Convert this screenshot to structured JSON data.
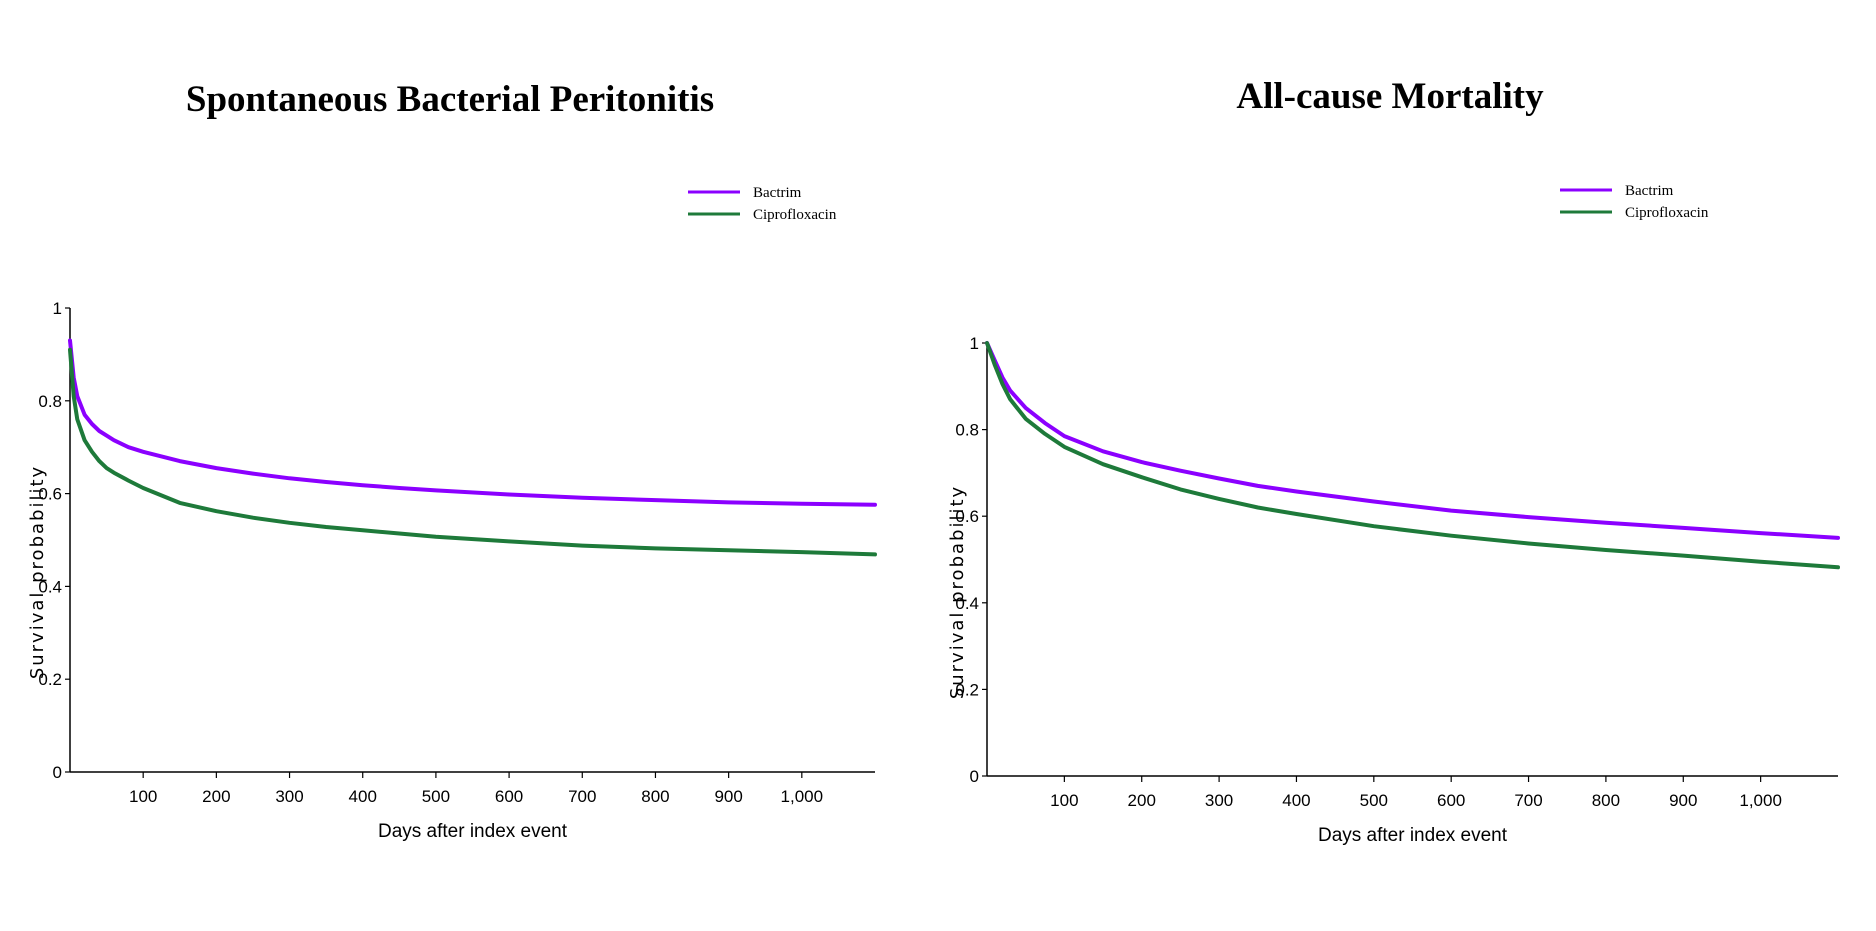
{
  "colors": {
    "bactrim": "#8B00FF",
    "ciprofloxacin": "#1E7A3A"
  },
  "chart_data": [
    {
      "type": "line",
      "title": "Spontaneous Bacterial Peritonitis",
      "xlabel": "Days after index event",
      "ylabel": "Survival probability",
      "xlim": [
        0,
        1100
      ],
      "ylim": [
        0,
        1
      ],
      "xticks": [
        100,
        200,
        300,
        400,
        500,
        600,
        700,
        800,
        900,
        1000
      ],
      "xtick_labels": [
        "100",
        "200",
        "300",
        "400",
        "500",
        "600",
        "700",
        "800",
        "900",
        "1,000"
      ],
      "yticks": [
        0,
        0.2,
        0.4,
        0.6,
        0.8,
        1
      ],
      "ytick_labels": [
        "0",
        "0.2",
        "0.4",
        "0.6",
        "0.8",
        "1"
      ],
      "legend": [
        "Bactrim",
        "Ciprofloxacin"
      ],
      "series": [
        {
          "name": "Bactrim",
          "x": [
            0,
            5,
            10,
            20,
            30,
            40,
            50,
            60,
            80,
            100,
            150,
            200,
            250,
            300,
            350,
            400,
            450,
            500,
            600,
            700,
            800,
            900,
            1000,
            1100
          ],
          "y": [
            0.93,
            0.85,
            0.81,
            0.77,
            0.75,
            0.735,
            0.725,
            0.715,
            0.7,
            0.69,
            0.67,
            0.655,
            0.643,
            0.633,
            0.625,
            0.618,
            0.612,
            0.607,
            0.598,
            0.591,
            0.586,
            0.581,
            0.578,
            0.576
          ]
        },
        {
          "name": "Ciprofloxacin",
          "x": [
            0,
            5,
            10,
            20,
            30,
            40,
            50,
            60,
            80,
            100,
            150,
            200,
            250,
            300,
            350,
            400,
            450,
            500,
            600,
            700,
            800,
            900,
            1000,
            1100
          ],
          "y": [
            0.91,
            0.81,
            0.76,
            0.715,
            0.69,
            0.67,
            0.655,
            0.645,
            0.628,
            0.612,
            0.58,
            0.562,
            0.548,
            0.537,
            0.528,
            0.521,
            0.514,
            0.507,
            0.497,
            0.488,
            0.482,
            0.478,
            0.474,
            0.469
          ]
        }
      ]
    },
    {
      "type": "line",
      "title": "All-cause Mortality",
      "xlabel": "Days after index event",
      "ylabel": "Survival probability",
      "xlim": [
        0,
        1100
      ],
      "ylim": [
        0,
        1
      ],
      "xticks": [
        100,
        200,
        300,
        400,
        500,
        600,
        700,
        800,
        900,
        1000
      ],
      "xtick_labels": [
        "100",
        "200",
        "300",
        "400",
        "500",
        "600",
        "700",
        "800",
        "900",
        "1,000"
      ],
      "yticks": [
        0,
        0.2,
        0.4,
        0.6,
        0.8,
        1
      ],
      "ytick_labels": [
        "0",
        "0.2",
        "0.4",
        "0.6",
        "0.8",
        "1"
      ],
      "legend": [
        "Bactrim",
        "Ciprofloxacin"
      ],
      "series": [
        {
          "name": "Bactrim",
          "x": [
            0,
            10,
            20,
            30,
            50,
            75,
            100,
            150,
            200,
            250,
            300,
            350,
            400,
            500,
            600,
            700,
            800,
            900,
            1000,
            1100
          ],
          "y": [
            1.0,
            0.96,
            0.92,
            0.89,
            0.85,
            0.815,
            0.785,
            0.75,
            0.725,
            0.705,
            0.687,
            0.67,
            0.657,
            0.634,
            0.613,
            0.598,
            0.585,
            0.573,
            0.561,
            0.55
          ]
        },
        {
          "name": "Ciprofloxacin",
          "x": [
            0,
            10,
            20,
            30,
            50,
            75,
            100,
            150,
            200,
            250,
            300,
            350,
            400,
            500,
            600,
            700,
            800,
            900,
            1000,
            1100
          ],
          "y": [
            1.0,
            0.95,
            0.905,
            0.87,
            0.825,
            0.79,
            0.76,
            0.72,
            0.69,
            0.662,
            0.64,
            0.62,
            0.605,
            0.577,
            0.555,
            0.537,
            0.522,
            0.509,
            0.495,
            0.482
          ]
        }
      ]
    }
  ]
}
